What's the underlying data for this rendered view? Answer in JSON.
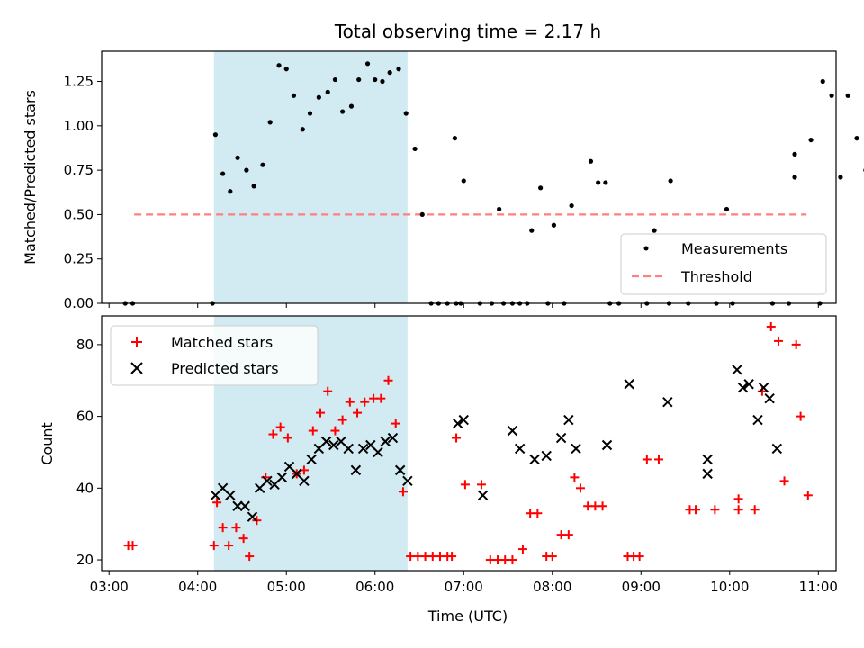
{
  "title": "Total observing time = 2.17 h",
  "colors": {
    "shade": "#add8e6",
    "measurement": "#000000",
    "threshold": "#ff7f7f",
    "matched": "#ff0000",
    "predicted": "#000000"
  },
  "chart_data": [
    {
      "type": "scatter",
      "panel": "top",
      "title": "Total observing time = 2.17 h",
      "xlabel": "",
      "ylabel": "Matched/Predicted stars",
      "xlim": [
        "02:55",
        "11:12"
      ],
      "ylim": [
        0,
        1.42
      ],
      "yticks": [
        0.0,
        0.25,
        0.5,
        0.75,
        1.0,
        1.25
      ],
      "ytick_labels": [
        "0.00",
        "0.25",
        "0.50",
        "0.75",
        "1.00",
        "1.25"
      ],
      "shaded_interval": [
        "04:11",
        "06:22"
      ],
      "legend_position": "lower right",
      "series": [
        {
          "name": "Measurements",
          "kind": "points",
          "points": [
            [
              "03:11",
              0
            ],
            [
              "03:16",
              0
            ],
            [
              "04:10",
              0
            ],
            [
              "04:12",
              0.95
            ],
            [
              "04:17",
              0.73
            ],
            [
              "04:22",
              0.63
            ],
            [
              "04:27",
              0.82
            ],
            [
              "04:33",
              0.75
            ],
            [
              "04:38",
              0.66
            ],
            [
              "04:44",
              0.78
            ],
            [
              "04:49",
              1.02
            ],
            [
              "04:55",
              1.34
            ],
            [
              "05:00",
              1.32
            ],
            [
              "05:05",
              1.17
            ],
            [
              "05:11",
              0.98
            ],
            [
              "05:16",
              1.07
            ],
            [
              "05:22",
              1.16
            ],
            [
              "05:28",
              1.19
            ],
            [
              "05:33",
              1.26
            ],
            [
              "05:38",
              1.08
            ],
            [
              "05:44",
              1.11
            ],
            [
              "05:49",
              1.26
            ],
            [
              "05:55",
              1.35
            ],
            [
              "06:00",
              1.26
            ],
            [
              "06:05",
              1.25
            ],
            [
              "06:10",
              1.3
            ],
            [
              "06:16",
              1.32
            ],
            [
              "06:21",
              1.07
            ],
            [
              "06:27",
              0.87
            ],
            [
              "06:32",
              0.5
            ],
            [
              "06:38",
              0
            ],
            [
              "06:43",
              0
            ],
            [
              "06:49",
              0
            ],
            [
              "06:55",
              0
            ],
            [
              "06:58",
              0
            ],
            [
              "06:54",
              0.93
            ],
            [
              "07:00",
              0.69
            ],
            [
              "07:11",
              0
            ],
            [
              "07:19",
              0
            ],
            [
              "07:24",
              0.53
            ],
            [
              "07:27",
              0
            ],
            [
              "07:33",
              0
            ],
            [
              "07:38",
              0
            ],
            [
              "07:43",
              0
            ],
            [
              "07:46",
              0.41
            ],
            [
              "07:52",
              0.65
            ],
            [
              "07:57",
              0
            ],
            [
              "08:01",
              0.44
            ],
            [
              "08:08",
              0
            ],
            [
              "08:13",
              0.55
            ],
            [
              "08:26",
              0.8
            ],
            [
              "08:31",
              0.68
            ],
            [
              "08:36",
              0.68
            ],
            [
              "08:39",
              0
            ],
            [
              "08:45",
              0
            ],
            [
              "09:04",
              0
            ],
            [
              "09:09",
              0.41
            ],
            [
              "09:19",
              0
            ],
            [
              "09:20",
              0.69
            ],
            [
              "09:32",
              0
            ],
            [
              "09:51",
              0
            ],
            [
              "09:58",
              0.53
            ],
            [
              "10:02",
              0
            ],
            [
              "10:44",
              0.84
            ],
            [
              "10:44",
              0.71
            ],
            [
              "10:29",
              0
            ],
            [
              "10:40",
              0
            ],
            [
              "11:01",
              0
            ],
            [
              "10:55",
              0.92
            ],
            [
              "11:03",
              1.25
            ],
            [
              "11:09",
              1.17
            ],
            [
              "11:15",
              0.71
            ],
            [
              "11:20",
              1.17
            ],
            [
              "11:26",
              0.93
            ],
            [
              "11:32",
              0.75
            ]
          ]
        },
        {
          "name": "Threshold",
          "kind": "dashed-line",
          "points": [
            [
              "03:17",
              0.5
            ],
            [
              "10:52",
              0.5
            ]
          ]
        }
      ]
    },
    {
      "type": "scatter",
      "panel": "bottom",
      "xlabel": "Time (UTC)",
      "ylabel": "Count",
      "xlim": [
        "02:55",
        "11:12"
      ],
      "ylim": [
        17,
        88
      ],
      "yticks": [
        20,
        40,
        60,
        80
      ],
      "xticks": [
        "03:00",
        "04:00",
        "05:00",
        "06:00",
        "07:00",
        "08:00",
        "09:00",
        "10:00",
        "11:00"
      ],
      "shaded_interval": [
        "04:11",
        "06:22"
      ],
      "legend_position": "upper left",
      "series": [
        {
          "name": "Matched stars",
          "marker": "plus",
          "points": [
            [
              "03:13",
              24
            ],
            [
              "03:16",
              24
            ],
            [
              "04:11",
              24
            ],
            [
              "04:13",
              36
            ],
            [
              "04:17",
              29
            ],
            [
              "04:21",
              24
            ],
            [
              "04:26",
              29
            ],
            [
              "04:31",
              26
            ],
            [
              "04:35",
              21
            ],
            [
              "04:40",
              31
            ],
            [
              "04:46",
              43
            ],
            [
              "04:51",
              55
            ],
            [
              "04:56",
              57
            ],
            [
              "05:01",
              54
            ],
            [
              "05:07",
              44
            ],
            [
              "05:12",
              45
            ],
            [
              "05:18",
              56
            ],
            [
              "05:23",
              61
            ],
            [
              "05:28",
              67
            ],
            [
              "05:33",
              56
            ],
            [
              "05:38",
              59
            ],
            [
              "05:43",
              64
            ],
            [
              "05:48",
              61
            ],
            [
              "05:53",
              64
            ],
            [
              "05:59",
              65
            ],
            [
              "06:04",
              65
            ],
            [
              "06:09",
              70
            ],
            [
              "06:14",
              58
            ],
            [
              "06:19",
              39
            ],
            [
              "06:24",
              21
            ],
            [
              "06:29",
              21
            ],
            [
              "06:34",
              21
            ],
            [
              "06:39",
              21
            ],
            [
              "06:44",
              21
            ],
            [
              "06:49",
              21
            ],
            [
              "06:52",
              21
            ],
            [
              "06:55",
              54
            ],
            [
              "07:01",
              41
            ],
            [
              "07:12",
              41
            ],
            [
              "07:18",
              20
            ],
            [
              "07:23",
              20
            ],
            [
              "07:28",
              20
            ],
            [
              "07:33",
              20
            ],
            [
              "07:40",
              23
            ],
            [
              "07:45",
              33
            ],
            [
              "07:50",
              33
            ],
            [
              "07:56",
              21
            ],
            [
              "08:00",
              21
            ],
            [
              "08:06",
              27
            ],
            [
              "08:11",
              27
            ],
            [
              "08:15",
              43
            ],
            [
              "08:19",
              40
            ],
            [
              "08:24",
              35
            ],
            [
              "08:29",
              35
            ],
            [
              "08:34",
              35
            ],
            [
              "08:51",
              21
            ],
            [
              "08:55",
              21
            ],
            [
              "08:59",
              21
            ],
            [
              "09:04",
              48
            ],
            [
              "09:12",
              48
            ],
            [
              "09:33",
              34
            ],
            [
              "09:37",
              34
            ],
            [
              "09:50",
              34
            ],
            [
              "10:06",
              37
            ],
            [
              "10:06",
              34
            ],
            [
              "10:17",
              34
            ],
            [
              "10:22",
              67
            ],
            [
              "10:28",
              85
            ],
            [
              "10:33",
              81
            ],
            [
              "10:37",
              42
            ],
            [
              "10:45",
              80
            ],
            [
              "10:48",
              60
            ],
            [
              "10:53",
              38
            ]
          ]
        },
        {
          "name": "Predicted stars",
          "marker": "x",
          "points": [
            [
              "04:12",
              38
            ],
            [
              "04:17",
              40
            ],
            [
              "04:22",
              38
            ],
            [
              "04:27",
              35
            ],
            [
              "04:32",
              35
            ],
            [
              "04:37",
              32
            ],
            [
              "04:42",
              40
            ],
            [
              "04:47",
              42
            ],
            [
              "04:52",
              41
            ],
            [
              "04:57",
              43
            ],
            [
              "05:02",
              46
            ],
            [
              "05:07",
              44
            ],
            [
              "05:12",
              42
            ],
            [
              "05:17",
              48
            ],
            [
              "05:22",
              51
            ],
            [
              "05:27",
              53
            ],
            [
              "05:32",
              52
            ],
            [
              "05:37",
              53
            ],
            [
              "05:42",
              51
            ],
            [
              "05:47",
              45
            ],
            [
              "05:52",
              51
            ],
            [
              "05:57",
              52
            ],
            [
              "06:02",
              50
            ],
            [
              "06:07",
              53
            ],
            [
              "06:12",
              54
            ],
            [
              "06:17",
              45
            ],
            [
              "06:22",
              42
            ],
            [
              "06:56",
              58
            ],
            [
              "07:00",
              59
            ],
            [
              "07:13",
              38
            ],
            [
              "07:33",
              56
            ],
            [
              "07:38",
              51
            ],
            [
              "07:48",
              48
            ],
            [
              "07:56",
              49
            ],
            [
              "08:06",
              54
            ],
            [
              "08:11",
              59
            ],
            [
              "08:16",
              51
            ],
            [
              "08:37",
              52
            ],
            [
              "08:52",
              69
            ],
            [
              "09:18",
              64
            ],
            [
              "09:45",
              48
            ],
            [
              "09:45",
              44
            ],
            [
              "10:05",
              73
            ],
            [
              "10:09",
              68
            ],
            [
              "10:13",
              69
            ],
            [
              "10:19",
              59
            ],
            [
              "10:23",
              68
            ],
            [
              "10:27",
              65
            ],
            [
              "10:32",
              51
            ]
          ]
        }
      ]
    }
  ]
}
